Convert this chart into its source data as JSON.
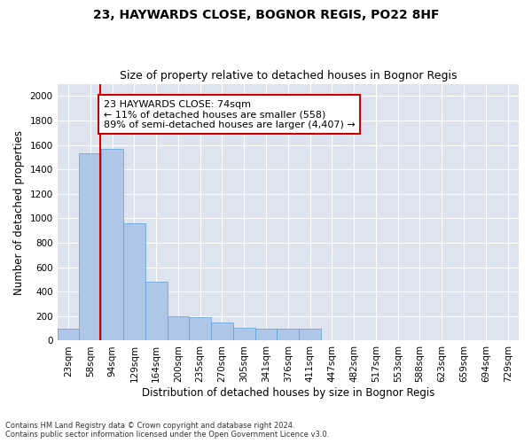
{
  "title": "23, HAYWARDS CLOSE, BOGNOR REGIS, PO22 8HF",
  "subtitle": "Size of property relative to detached houses in Bognor Regis",
  "xlabel": "Distribution of detached houses by size in Bognor Regis",
  "ylabel": "Number of detached properties",
  "bins": [
    "23sqm",
    "58sqm",
    "94sqm",
    "129sqm",
    "164sqm",
    "200sqm",
    "235sqm",
    "270sqm",
    "305sqm",
    "341sqm",
    "376sqm",
    "411sqm",
    "447sqm",
    "482sqm",
    "517sqm",
    "553sqm",
    "588sqm",
    "623sqm",
    "659sqm",
    "694sqm",
    "729sqm"
  ],
  "values": [
    100,
    1530,
    1570,
    960,
    480,
    200,
    195,
    150,
    105,
    100,
    95,
    95,
    0,
    0,
    0,
    0,
    0,
    0,
    0,
    0,
    0
  ],
  "bar_color": "#aec6e8",
  "bar_edge_color": "#5a9fd4",
  "property_line_x": 1.45,
  "property_line_color": "#cc0000",
  "annotation_text": "23 HAYWARDS CLOSE: 74sqm\n← 11% of detached houses are smaller (558)\n89% of semi-detached houses are larger (4,407) →",
  "annotation_box_color": "#ffffff",
  "annotation_box_edge": "#cc0000",
  "ylim": [
    0,
    2100
  ],
  "yticks": [
    0,
    200,
    400,
    600,
    800,
    1000,
    1200,
    1400,
    1600,
    1800,
    2000
  ],
  "footnote1": "Contains HM Land Registry data © Crown copyright and database right 2024.",
  "footnote2": "Contains public sector information licensed under the Open Government Licence v3.0.",
  "bg_color": "#dde4f0",
  "fig_bg_color": "#ffffff",
  "title_fontsize": 10,
  "subtitle_fontsize": 9,
  "tick_fontsize": 7.5,
  "label_fontsize": 8.5,
  "annotation_fontsize": 8,
  "footnote_fontsize": 6
}
